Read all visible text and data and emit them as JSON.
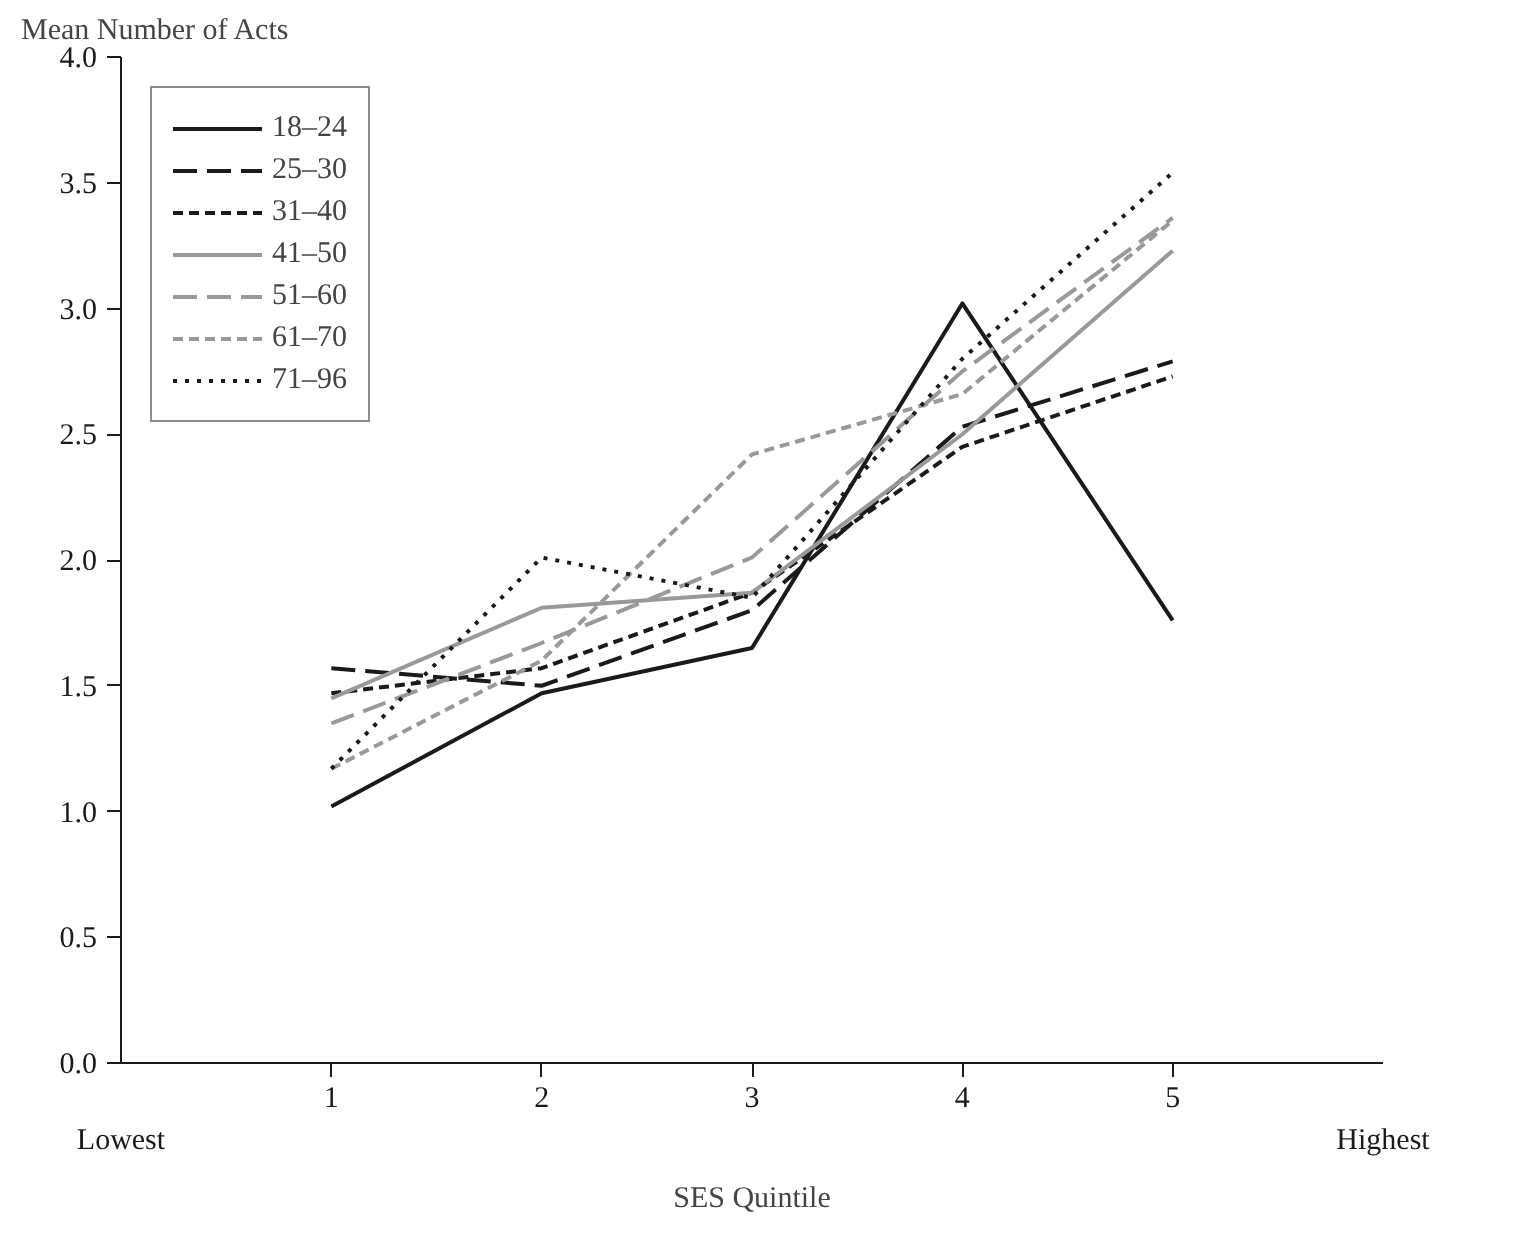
{
  "chart_data": {
    "type": "line",
    "ylabel": "Mean Number of Acts",
    "xlabel": "SES Quintile",
    "annotations": [
      "Lowest",
      "Highest"
    ],
    "x": [
      1,
      2,
      3,
      4,
      5
    ],
    "xlim": [
      0,
      6
    ],
    "xticks": [
      1,
      2,
      3,
      4,
      5
    ],
    "ylim": [
      0,
      4
    ],
    "yticks": [
      {
        "value": 0,
        "label": "0.0"
      },
      {
        "value": 0.5,
        "label": "0.5"
      },
      {
        "value": 1,
        "label": "1.0"
      },
      {
        "value": 1.5,
        "label": "1.5"
      },
      {
        "value": 2,
        "label": "2.0"
      },
      {
        "value": 2.5,
        "label": "2.5"
      },
      {
        "value": 3,
        "label": "3.0"
      },
      {
        "value": 3.5,
        "label": "3.5"
      },
      {
        "value": 4,
        "label": "4.0"
      }
    ],
    "grid": false,
    "legend": "top left",
    "marker": "none",
    "series": [
      {
        "name": "18–24",
        "color": "#1a1a1a",
        "line_style": "solid",
        "values": [
          1.02,
          1.47,
          1.65,
          3.02,
          1.76
        ]
      },
      {
        "name": "25–30",
        "color": "#1a1a1a",
        "line_style": "dashed",
        "values": [
          1.57,
          1.5,
          1.8,
          2.53,
          2.79
        ]
      },
      {
        "name": "31–40",
        "color": "#1a1a1a",
        "line_style": "short dashed",
        "values": [
          1.47,
          1.57,
          1.87,
          2.45,
          2.73
        ]
      },
      {
        "name": "41–50",
        "color": "#999999",
        "line_style": "solid",
        "values": [
          1.45,
          1.81,
          1.87,
          2.5,
          3.23
        ]
      },
      {
        "name": "51–60",
        "color": "#999999",
        "line_style": "dashed",
        "values": [
          1.35,
          1.67,
          2.01,
          2.75,
          3.36
        ]
      },
      {
        "name": "61–70",
        "color": "#999999",
        "line_style": "short dashed",
        "values": [
          1.17,
          1.6,
          2.42,
          2.66,
          3.35
        ]
      },
      {
        "name": "71–96",
        "color": "#1a1a1a",
        "line_style": "dotted",
        "values": [
          1.17,
          2.01,
          1.85,
          2.8,
          3.54
        ]
      }
    ]
  }
}
